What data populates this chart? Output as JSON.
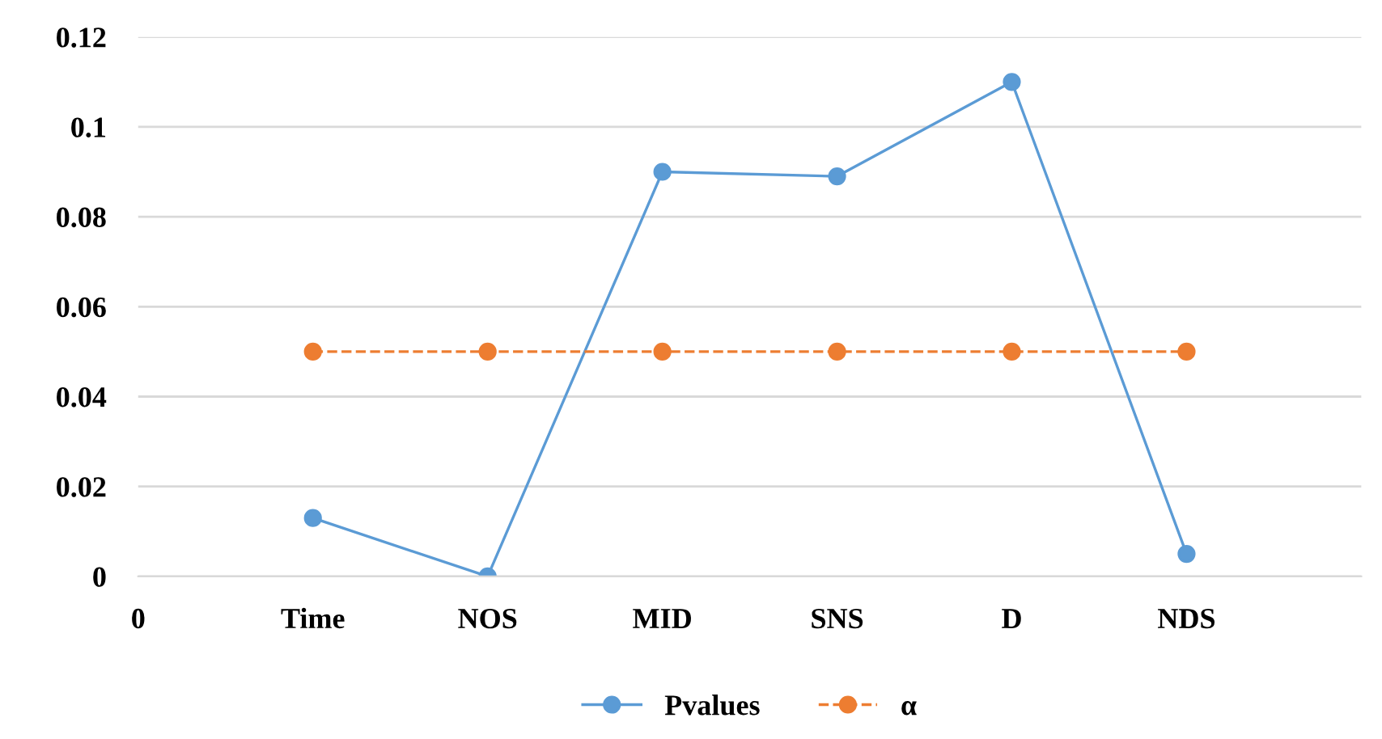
{
  "chart_data": {
    "type": "line",
    "categories": [
      "0",
      "Time",
      "NOS",
      "MID",
      "SNS",
      "D",
      "NDS",
      null
    ],
    "series": [
      {
        "name": "Pvalues",
        "color": "#5b9bd5",
        "values": [
          null,
          0.013,
          0.0,
          0.09,
          0.089,
          0.11,
          0.005,
          null
        ],
        "marker": "circle",
        "line_style": "solid"
      },
      {
        "name": "α",
        "color": "#ed7d31",
        "values": [
          null,
          0.05,
          0.05,
          0.05,
          0.05,
          0.05,
          0.05,
          null
        ],
        "marker": "circle",
        "line_style": "dashed"
      }
    ],
    "ylim": [
      0,
      0.12
    ],
    "yticks": [
      0,
      0.02,
      0.04,
      0.06,
      0.08,
      0.1,
      0.12
    ],
    "grid": "y",
    "legend": "bottom"
  }
}
